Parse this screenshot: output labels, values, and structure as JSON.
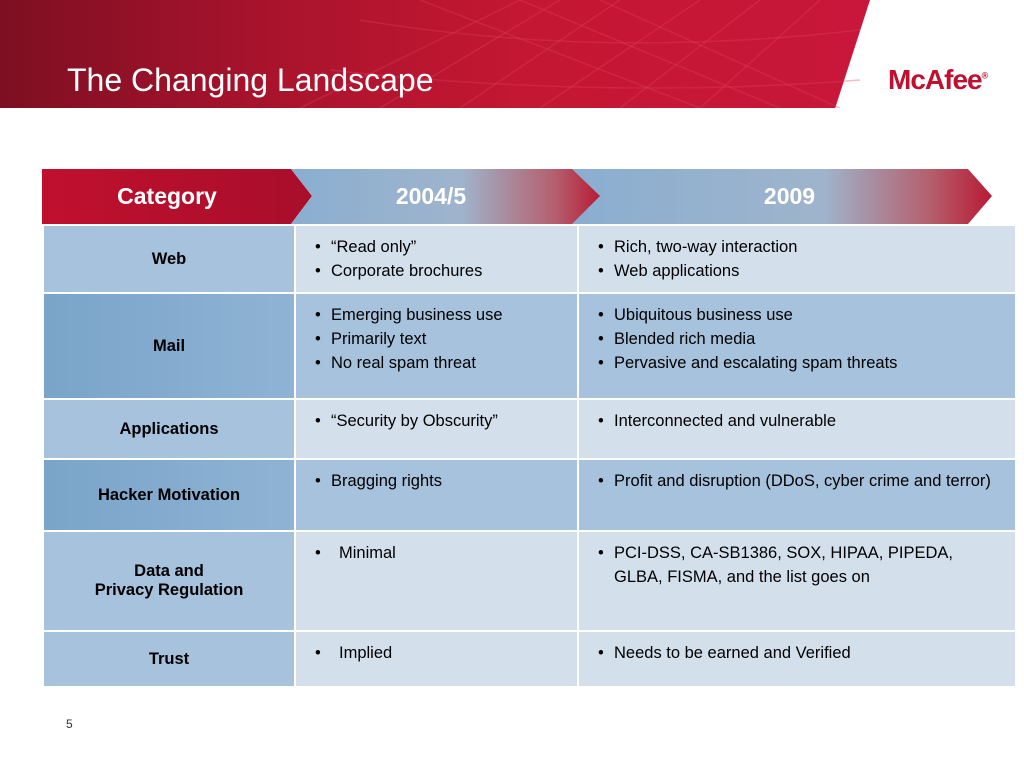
{
  "slide": {
    "title": "The Changing Landscape",
    "logo_text": "McAfee",
    "page_number": "5"
  },
  "table": {
    "headers": [
      "Category",
      "2004/5",
      "2009"
    ],
    "rows": [
      {
        "category": "Web",
        "col1": [
          "“Read only”",
          "Corporate brochures"
        ],
        "col2": [
          "Rich, two-way interaction",
          "Web applications"
        ]
      },
      {
        "category": "Mail",
        "col1": [
          "Emerging business use",
          "Primarily text",
          "No real spam threat"
        ],
        "col2": [
          "Ubiquitous business use",
          "Blended rich media",
          "Pervasive and escalating spam threats"
        ]
      },
      {
        "category": "Applications",
        "col1": [
          "“Security by Obscurity”"
        ],
        "col2": [
          "Interconnected and vulnerable"
        ]
      },
      {
        "category": "Hacker Motivation",
        "col1": [
          "Bragging rights"
        ],
        "col2": [
          "Profit and disruption (DDoS, cyber crime and terror)"
        ]
      },
      {
        "category_line1": "Data and",
        "category_line2": "Privacy Regulation",
        "col1": [
          "Minimal"
        ],
        "col2": [
          "PCI-DSS, CA-SB1386, SOX, HIPAA, PIPEDA, GLBA, FISMA, and the list goes on"
        ]
      },
      {
        "category": "Trust",
        "col1": [
          "Implied"
        ],
        "col2": [
          "Needs to be earned and Verified"
        ]
      }
    ]
  },
  "colors": {
    "brand_red": "#c0102f",
    "table_light": "#d3e0ec",
    "table_dark": "#a6c2dc"
  }
}
